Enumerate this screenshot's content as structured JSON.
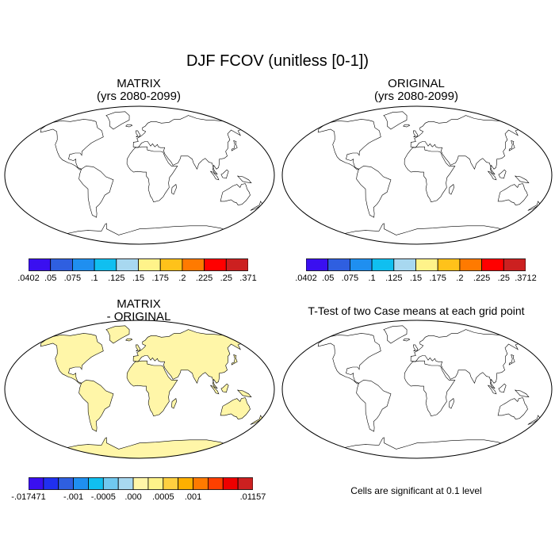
{
  "title": "DJF FCOV (unitless [0-1])",
  "panels": [
    {
      "id": "matrix",
      "title_line1": "MATRIX",
      "title_line2": "(yrs 2080-2099)"
    },
    {
      "id": "original",
      "title_line1": "ORIGINAL",
      "title_line2": "(yrs 2080-2099)"
    },
    {
      "id": "diff",
      "title_line1": "MATRIX",
      "title_line2": "- ORIGINAL"
    },
    {
      "id": "ttest",
      "title_line1": "T-Test of two Case means at each grid point",
      "title_line2": ""
    }
  ],
  "colorbars": [
    {
      "id": "matrix-colorbar",
      "colors": [
        "#3a0ff0",
        "#2f5fe0",
        "#1f8ff0",
        "#10bff0",
        "#a8d8f0",
        "#fff38a",
        "#ffc21a",
        "#ff7a00",
        "#ff0000",
        "#cc2020"
      ],
      "labels": [
        ".0402",
        ".05",
        ".075",
        ".1",
        ".125",
        ".15",
        ".175",
        ".2",
        ".225",
        ".25",
        ".371"
      ]
    },
    {
      "id": "original-colorbar",
      "colors": [
        "#3a0ff0",
        "#2f5fe0",
        "#1f8ff0",
        "#10bff0",
        "#a8d8f0",
        "#fff38a",
        "#ffc21a",
        "#ff7a00",
        "#ff0000",
        "#cc2020"
      ],
      "labels": [
        ".0402",
        ".05",
        ".075",
        ".1",
        ".125",
        ".15",
        ".175",
        ".2",
        ".225",
        ".25",
        ".3712"
      ]
    },
    {
      "id": "diff-colorbar",
      "colors": [
        "#3a0ff0",
        "#2030f0",
        "#2f5fe0",
        "#1f8ff0",
        "#10bff0",
        "#70c8f0",
        "#a8d8f0",
        "#fff6a8",
        "#fff38a",
        "#ffd040",
        "#ffb000",
        "#ff7a00",
        "#ff4000",
        "#ee0000",
        "#cc2020"
      ],
      "labels": [
        "-.017471",
        "-.001",
        "-.0005",
        ".000",
        ".0005",
        ".001",
        ".01157"
      ],
      "label_slots": [
        0,
        3,
        5,
        7,
        9,
        11,
        15
      ]
    }
  ],
  "note": "Cells are significant at 0.1 level"
}
